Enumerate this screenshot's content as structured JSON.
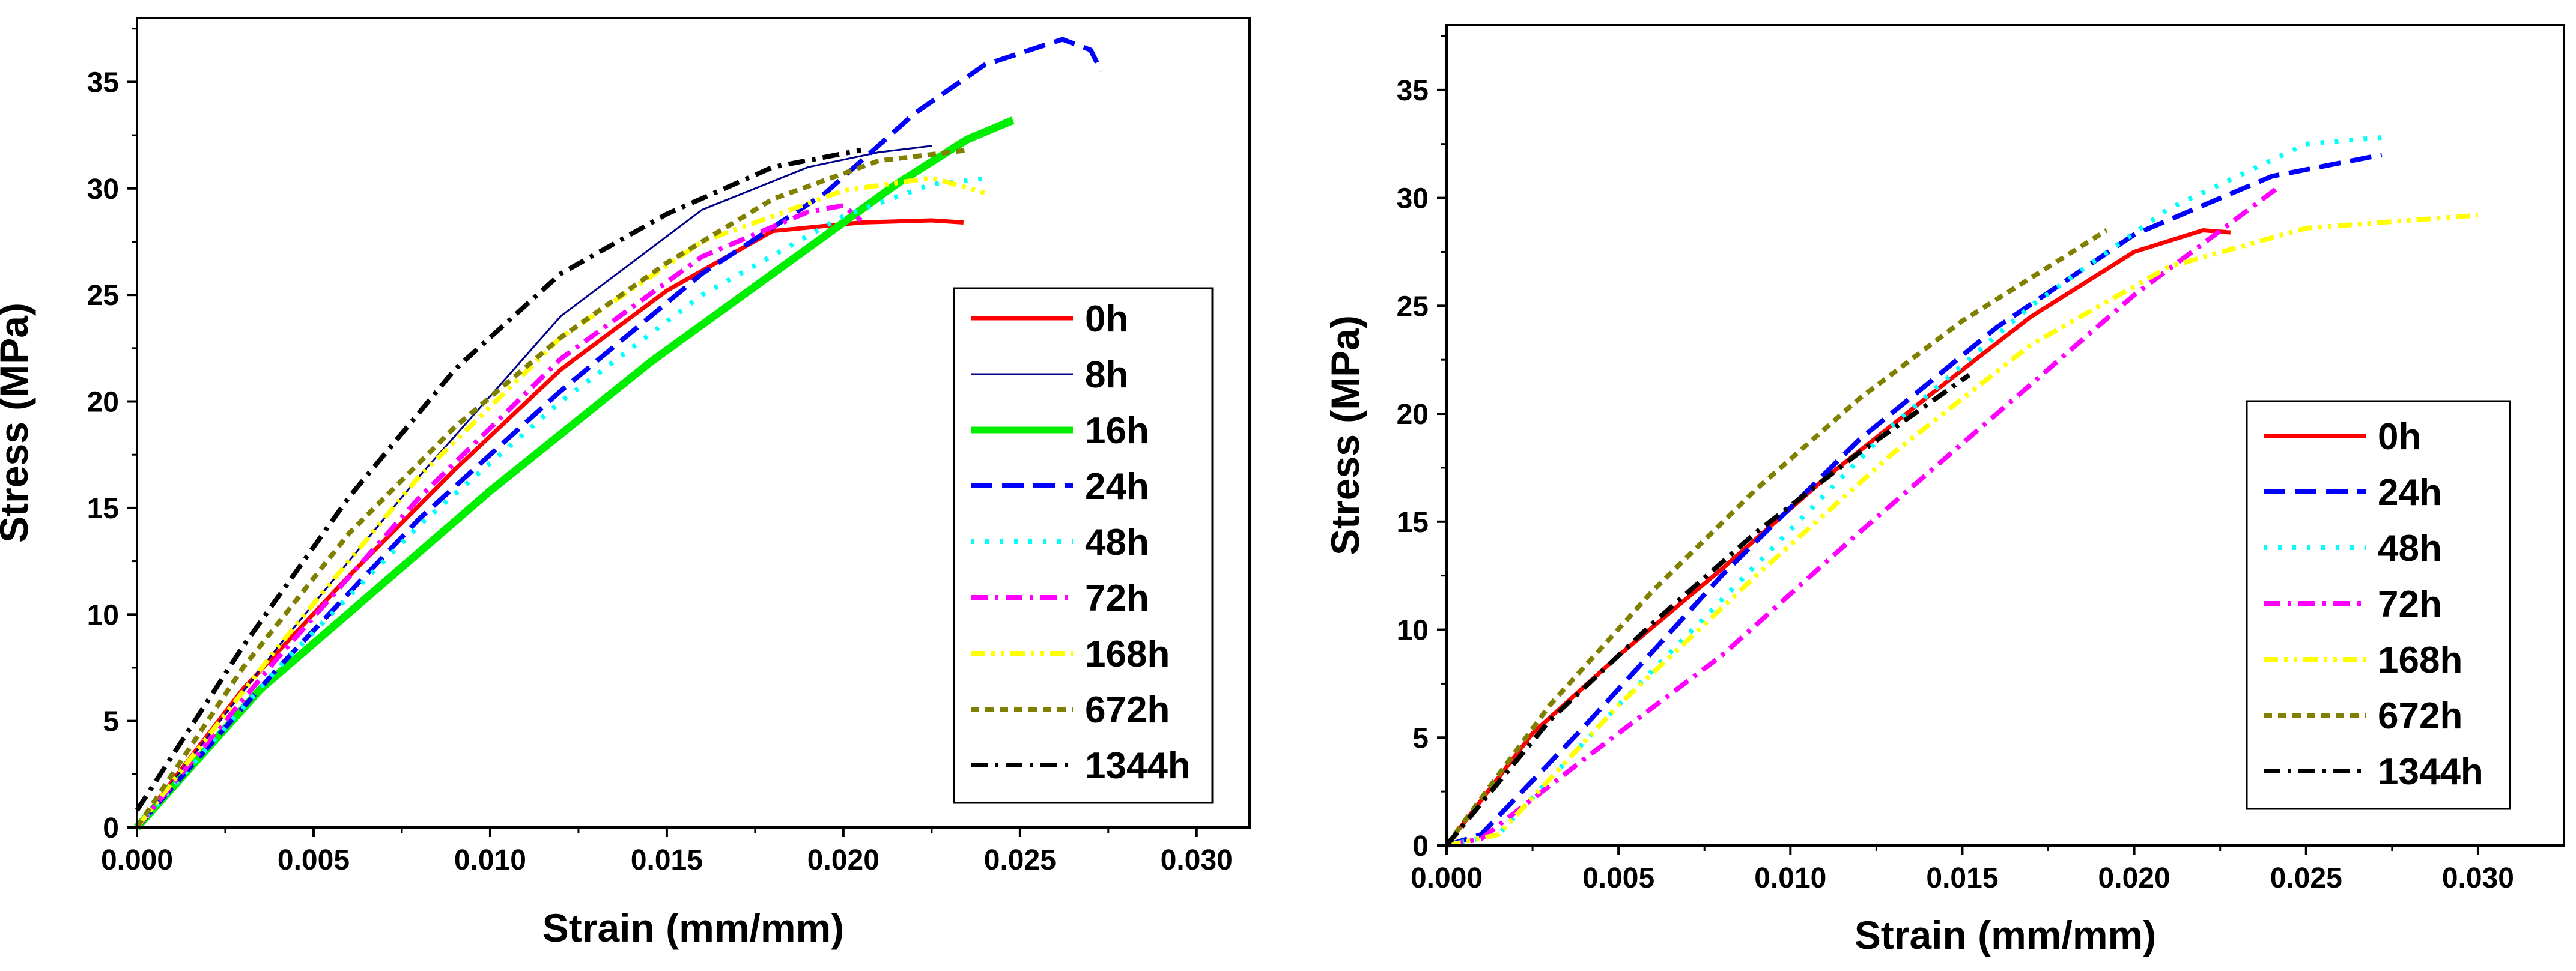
{
  "chart_data": [
    {
      "type": "line",
      "title": "",
      "xlabel": "Strain (mm/mm)",
      "ylabel": "Stress (MPa)",
      "xlim": [
        0,
        0.0315
      ],
      "ylim": [
        0,
        38
      ],
      "xticks": [
        "0.000",
        "0.005",
        "0.010",
        "0.015",
        "0.020",
        "0.025",
        "0.030"
      ],
      "xtick_values": [
        0,
        0.005,
        0.01,
        0.015,
        0.02,
        0.025,
        0.03
      ],
      "yticks": [
        "0",
        "5",
        "10",
        "15",
        "20",
        "25",
        "30",
        "35"
      ],
      "ytick_values": [
        0,
        5,
        10,
        15,
        20,
        25,
        30,
        35
      ],
      "legend_position": "right",
      "series": [
        {
          "name": "0h",
          "color": "#ff0000",
          "style": "solid-thick",
          "x": [
            0,
            0.003,
            0.006,
            0.009,
            0.012,
            0.015,
            0.018,
            0.0205,
            0.0225,
            0.0234
          ],
          "y": [
            0,
            6.5,
            11.8,
            16.8,
            21.5,
            25.2,
            28.0,
            28.4,
            28.5,
            28.4
          ]
        },
        {
          "name": "8h",
          "color": "#00008b",
          "style": "solid-thin",
          "x": [
            0,
            0.004,
            0.008,
            0.012,
            0.016,
            0.019,
            0.021,
            0.0225
          ],
          "y": [
            0,
            8.5,
            16.5,
            24.0,
            29.0,
            31.0,
            31.7,
            32.0
          ]
        },
        {
          "name": "16h",
          "color": "#00ee00",
          "style": "solid-thicker",
          "x": [
            0,
            0.0035,
            0.007,
            0.01,
            0.0145,
            0.018,
            0.0215,
            0.0235,
            0.0248
          ],
          "y": [
            0,
            6.5,
            11.5,
            15.8,
            21.8,
            26.0,
            30.2,
            32.3,
            33.2
          ]
        },
        {
          "name": "24h",
          "color": "#0000ff",
          "style": "dash",
          "x": [
            0,
            0.004,
            0.008,
            0.012,
            0.016,
            0.0195,
            0.022,
            0.024,
            0.0262,
            0.027,
            0.0273
          ],
          "y": [
            0,
            7.5,
            14.5,
            20.5,
            26.0,
            29.8,
            33.5,
            35.8,
            37.0,
            36.5,
            35.5
          ]
        },
        {
          "name": "48h",
          "color": "#00ffff",
          "style": "dot",
          "x": [
            0,
            0.004,
            0.008,
            0.012,
            0.016,
            0.02,
            0.0225,
            0.0242
          ],
          "y": [
            0,
            7.5,
            14.2,
            20.0,
            25.0,
            28.7,
            30.2,
            30.5
          ]
        },
        {
          "name": "72h",
          "color": "#ff00ff",
          "style": "dashdot",
          "x": [
            0,
            0.004,
            0.008,
            0.012,
            0.016,
            0.019,
            0.02,
            0.0205
          ],
          "y": [
            0,
            8.0,
            15.5,
            22.0,
            26.8,
            28.9,
            29.2,
            28.5
          ]
        },
        {
          "name": "168h",
          "color": "#ffff00",
          "style": "dashdotdot",
          "x": [
            0,
            0.004,
            0.008,
            0.012,
            0.016,
            0.02,
            0.0225,
            0.024
          ],
          "y": [
            0,
            8.5,
            16.5,
            23.0,
            27.5,
            29.9,
            30.5,
            29.8
          ]
        },
        {
          "name": "672h",
          "color": "#808000",
          "style": "shortdash",
          "x": [
            0,
            0.003,
            0.006,
            0.009,
            0.012,
            0.015,
            0.018,
            0.021,
            0.0235
          ],
          "y": [
            0,
            7.5,
            13.8,
            18.8,
            23.0,
            26.5,
            29.5,
            31.3,
            31.8
          ]
        },
        {
          "name": "1344h",
          "color": "#000000",
          "style": "dashdot",
          "x": [
            0,
            0.003,
            0.006,
            0.009,
            0.012,
            0.015,
            0.018,
            0.0205
          ],
          "y": [
            0.8,
            8.5,
            15.5,
            21.5,
            26.0,
            28.8,
            31.0,
            31.8
          ]
        }
      ]
    },
    {
      "type": "line",
      "title": "",
      "xlabel": "Strain (mm/mm)",
      "ylabel": "Stress (MPa)",
      "xlim": [
        0,
        0.0325
      ],
      "ylim": [
        0,
        38
      ],
      "xticks": [
        "0.000",
        "0.005",
        "0.010",
        "0.015",
        "0.020",
        "0.025",
        "0.030"
      ],
      "xtick_values": [
        0,
        0.005,
        0.01,
        0.015,
        0.02,
        0.025,
        0.03
      ],
      "yticks": [
        "0",
        "5",
        "10",
        "15",
        "20",
        "25",
        "30",
        "35"
      ],
      "ytick_values": [
        0,
        5,
        10,
        15,
        20,
        25,
        30,
        35
      ],
      "legend_position": "lower-right",
      "series": [
        {
          "name": "0h",
          "color": "#ff0000",
          "style": "solid-thick",
          "x": [
            0,
            0.0025,
            0.005,
            0.008,
            0.011,
            0.014,
            0.017,
            0.02,
            0.022,
            0.0228
          ],
          "y": [
            0,
            5.2,
            8.8,
            12.8,
            17.0,
            20.8,
            24.5,
            27.5,
            28.5,
            28.4
          ]
        },
        {
          "name": "24h",
          "color": "#0000ff",
          "style": "dash",
          "x": [
            0,
            0.001,
            0.004,
            0.008,
            0.012,
            0.016,
            0.02,
            0.024,
            0.0272
          ],
          "y": [
            0,
            0.5,
            5.5,
            12.5,
            18.8,
            24.0,
            28.3,
            31.0,
            32.0
          ]
        },
        {
          "name": "48h",
          "color": "#00ffff",
          "style": "dot",
          "x": [
            0,
            0.0015,
            0.005,
            0.009,
            0.013,
            0.017,
            0.021,
            0.025,
            0.0272
          ],
          "y": [
            0,
            0.5,
            6.5,
            13.0,
            19.5,
            25.0,
            29.5,
            32.5,
            32.8
          ]
        },
        {
          "name": "72h",
          "color": "#ff00ff",
          "style": "dashdot",
          "x": [
            0,
            0.001,
            0.004,
            0.008,
            0.012,
            0.016,
            0.02,
            0.0242
          ],
          "y": [
            0,
            0.3,
            4.0,
            8.8,
            14.5,
            20.0,
            25.5,
            30.5
          ]
        },
        {
          "name": "168h",
          "color": "#ffff00",
          "style": "dashdotdot",
          "x": [
            0,
            0.0015,
            0.005,
            0.009,
            0.013,
            0.017,
            0.021,
            0.025,
            0.03
          ],
          "y": [
            0,
            0.5,
            6.5,
            12.5,
            18.2,
            23.2,
            26.8,
            28.6,
            29.2
          ]
        },
        {
          "name": "672h",
          "color": "#808000",
          "style": "shortdash",
          "x": [
            0,
            0.003,
            0.006,
            0.009,
            0.012,
            0.015,
            0.018,
            0.0192
          ],
          "y": [
            0,
            6.5,
            11.8,
            16.5,
            20.7,
            24.3,
            27.3,
            28.5
          ]
        },
        {
          "name": "1344h",
          "color": "#000000",
          "style": "dashdot",
          "x": [
            0,
            0.003,
            0.006,
            0.009,
            0.012,
            0.0152
          ],
          "y": [
            0,
            5.8,
            10.3,
            14.5,
            18.2,
            21.8
          ]
        }
      ]
    }
  ]
}
